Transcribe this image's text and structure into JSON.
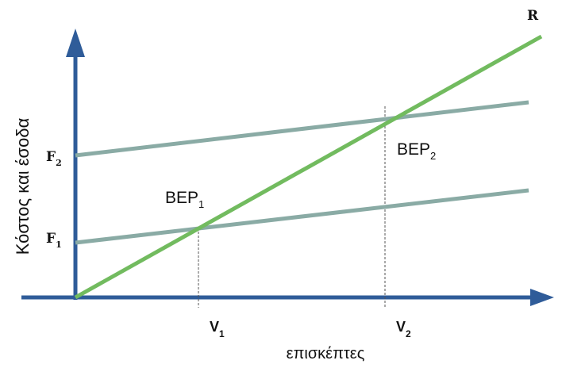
{
  "chart_data": {
    "type": "line",
    "xlabel": "επισκέπτες",
    "ylabel": "Κόστος και έσοδα",
    "colors": {
      "axis": "#2f5c99",
      "revenue": "#72bb5f",
      "cost": "#8aaba5",
      "text": "#111111"
    },
    "y_ticks": [
      {
        "main": "F",
        "sub": "2"
      },
      {
        "main": "F",
        "sub": "1"
      }
    ],
    "x_ticks": [
      {
        "main": "V",
        "sub": "1"
      },
      {
        "main": "V",
        "sub": "2"
      }
    ],
    "lines": {
      "revenue_label": "R",
      "cost_high": "F2 cost line",
      "cost_low": "F1 cost line"
    },
    "points": [
      {
        "main": "BEP",
        "sub": "1"
      },
      {
        "main": "BEP",
        "sub": "2"
      }
    ]
  }
}
